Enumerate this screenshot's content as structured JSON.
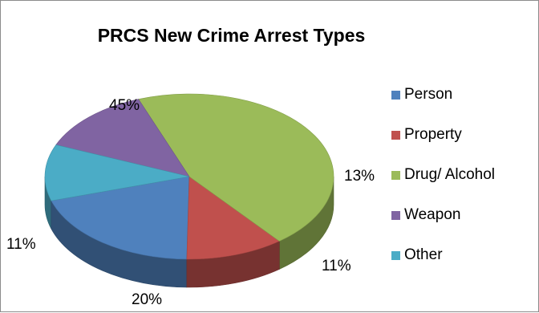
{
  "chart_data": {
    "type": "pie",
    "title": "PRCS New Crime Arrest Types",
    "categories": [
      "Person",
      "Property",
      "Drug/ Alcohol",
      "Weapon",
      "Other"
    ],
    "values": [
      20,
      11,
      45,
      13,
      11
    ],
    "value_labels": [
      "20%",
      "11%",
      "45%",
      "13%",
      "11%"
    ],
    "colors": [
      "#4f81bd",
      "#c0504d",
      "#9bbb59",
      "#8064a2",
      "#4bacc6"
    ],
    "style": "3d",
    "legend": "right"
  }
}
